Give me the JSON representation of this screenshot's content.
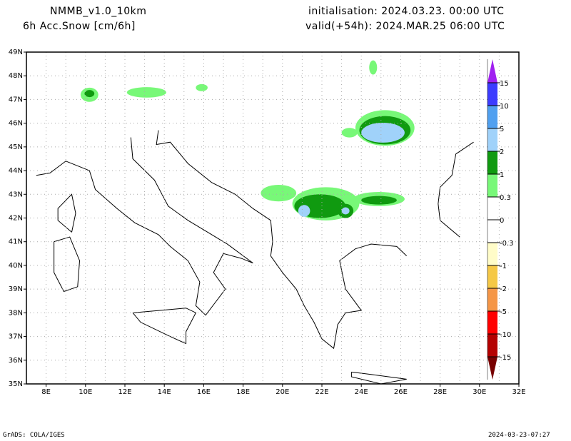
{
  "header": {
    "model": "NMMB_v1.0_10km",
    "variable": "6h Acc.Snow [cm/6h]",
    "init": "initialisation: 2024.03.23.  00:00 UTC",
    "valid": "valid(+54h): 2024.MAR.25 06:00 UTC"
  },
  "footer": {
    "left": "GrADS: COLA/IGES",
    "right": "2024-03-23-07:27"
  },
  "chart_data": {
    "type": "map",
    "lon_range": [
      7,
      32
    ],
    "lat_range": [
      35,
      49
    ],
    "lon_ticks": [
      "8E",
      "10E",
      "12E",
      "14E",
      "16E",
      "18E",
      "20E",
      "22E",
      "24E",
      "26E",
      "28E",
      "30E",
      "32E"
    ],
    "lat_ticks": [
      "35N",
      "36N",
      "37N",
      "38N",
      "39N",
      "40N",
      "41N",
      "42N",
      "43N",
      "44N",
      "45N",
      "46N",
      "47N",
      "48N",
      "49N"
    ],
    "grid": true,
    "colorbar": {
      "labels": [
        "15",
        "10",
        "5",
        "2",
        "1",
        "0.3",
        "0",
        "-0.3",
        "-1",
        "-2",
        "-5",
        "-10",
        "-15"
      ],
      "colors": [
        "#a020f0",
        "#3c3cff",
        "#50a0f0",
        "#a0d2fa",
        "#109a10",
        "#78f878",
        "#ffffff",
        "#ffffff",
        "#fffcc8",
        "#f5c846",
        "#f59646",
        "#ff0000",
        "#b40000",
        "#780000"
      ]
    },
    "snow_regions": [
      {
        "lon": 25.2,
        "lat": 45.8,
        "rlon": 1.5,
        "rlat": 0.75,
        "color": "#78f878"
      },
      {
        "lon": 25.2,
        "lat": 45.7,
        "rlon": 1.3,
        "rlat": 0.6,
        "color": "#109a10"
      },
      {
        "lon": 25.1,
        "lat": 45.6,
        "rlon": 1.1,
        "rlat": 0.42,
        "color": "#a0d2fa"
      },
      {
        "lon": 23.4,
        "lat": 45.6,
        "rlon": 0.4,
        "rlat": 0.2,
        "color": "#78f878"
      },
      {
        "lon": 22.2,
        "lat": 42.6,
        "rlon": 1.7,
        "rlat": 0.7,
        "color": "#78f878"
      },
      {
        "lon": 21.9,
        "lat": 42.5,
        "rlon": 1.3,
        "rlat": 0.5,
        "color": "#109a10"
      },
      {
        "lon": 21.1,
        "lat": 42.3,
        "rlon": 0.3,
        "rlat": 0.25,
        "color": "#a0d2fa"
      },
      {
        "lon": 23.2,
        "lat": 42.3,
        "rlon": 0.4,
        "rlat": 0.3,
        "color": "#109a10"
      },
      {
        "lon": 23.2,
        "lat": 42.3,
        "rlon": 0.2,
        "rlat": 0.15,
        "color": "#a0d2fa"
      },
      {
        "lon": 24.9,
        "lat": 42.8,
        "rlon": 1.3,
        "rlat": 0.3,
        "color": "#78f878"
      },
      {
        "lon": 24.9,
        "lat": 42.75,
        "rlon": 0.9,
        "rlat": 0.18,
        "color": "#109a10"
      },
      {
        "lon": 19.8,
        "lat": 43.05,
        "rlon": 0.9,
        "rlat": 0.35,
        "color": "#78f878"
      },
      {
        "lon": 10.2,
        "lat": 47.2,
        "rlon": 0.45,
        "rlat": 0.3,
        "color": "#78f878"
      },
      {
        "lon": 10.2,
        "lat": 47.25,
        "rlon": 0.25,
        "rlat": 0.15,
        "color": "#109a10"
      },
      {
        "lon": 13.1,
        "lat": 47.3,
        "rlon": 1.0,
        "rlat": 0.22,
        "color": "#78f878"
      },
      {
        "lon": 15.9,
        "lat": 47.5,
        "rlon": 0.3,
        "rlat": 0.15,
        "color": "#78f878"
      },
      {
        "lon": 24.6,
        "lat": 48.35,
        "rlon": 0.2,
        "rlat": 0.3,
        "color": "#78f878"
      }
    ]
  }
}
